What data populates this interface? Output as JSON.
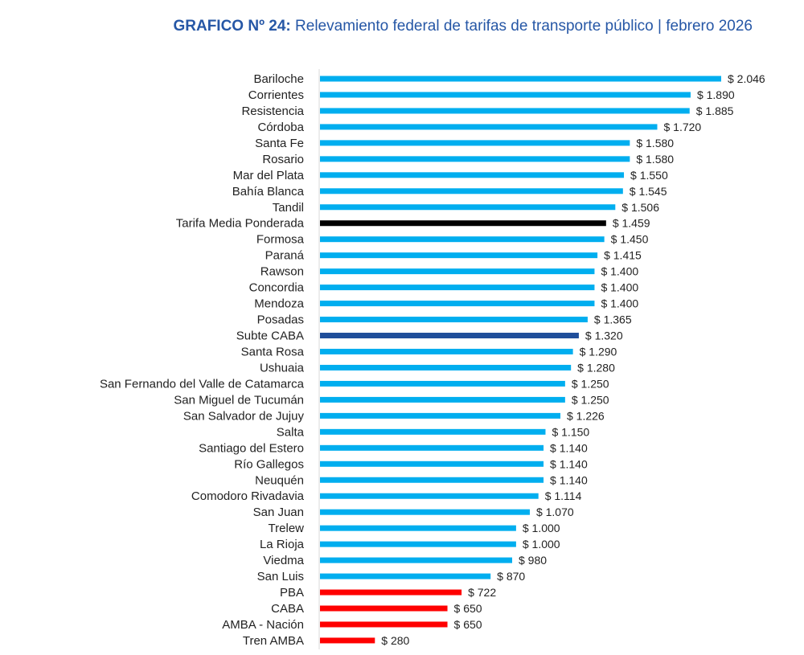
{
  "chart_data": {
    "type": "bar",
    "orientation": "horizontal",
    "title_prefix": "GRAFICO Nº 24:",
    "title": "Relevamiento federal de tarifas de transporte público | febrero 2026",
    "xlabel": "",
    "ylabel": "",
    "value_prefix": "$ ",
    "xlim": [
      0,
      2046
    ],
    "grid": false,
    "colors": {
      "default": "#00aeef",
      "average": "#000000",
      "subte": "#1f4e9a",
      "amba": "#ff0000"
    },
    "bars": [
      {
        "category": "Bariloche",
        "value": 2046,
        "label": "$ 2.046",
        "group": "default"
      },
      {
        "category": "Corrientes",
        "value": 1890,
        "label": "$ 1.890",
        "group": "default"
      },
      {
        "category": "Resistencia",
        "value": 1885,
        "label": "$ 1.885",
        "group": "default"
      },
      {
        "category": "Córdoba",
        "value": 1720,
        "label": "$ 1.720",
        "group": "default"
      },
      {
        "category": "Santa Fe",
        "value": 1580,
        "label": "$ 1.580",
        "group": "default"
      },
      {
        "category": "Rosario",
        "value": 1580,
        "label": "$ 1.580",
        "group": "default"
      },
      {
        "category": "Mar del Plata",
        "value": 1550,
        "label": "$ 1.550",
        "group": "default"
      },
      {
        "category": "Bahía Blanca",
        "value": 1545,
        "label": "$ 1.545",
        "group": "default"
      },
      {
        "category": "Tandil",
        "value": 1506,
        "label": "$ 1.506",
        "group": "default"
      },
      {
        "category": "Tarifa Media Ponderada",
        "value": 1459,
        "label": "$ 1.459",
        "group": "average"
      },
      {
        "category": "Formosa",
        "value": 1450,
        "label": "$ 1.450",
        "group": "default"
      },
      {
        "category": "Paraná",
        "value": 1415,
        "label": "$ 1.415",
        "group": "default"
      },
      {
        "category": "Rawson",
        "value": 1400,
        "label": "$ 1.400",
        "group": "default"
      },
      {
        "category": "Concordia",
        "value": 1400,
        "label": "$ 1.400",
        "group": "default"
      },
      {
        "category": "Mendoza",
        "value": 1400,
        "label": "$ 1.400",
        "group": "default"
      },
      {
        "category": "Posadas",
        "value": 1365,
        "label": "$ 1.365",
        "group": "default"
      },
      {
        "category": "Subte CABA",
        "value": 1320,
        "label": "$ 1.320",
        "group": "subte"
      },
      {
        "category": "Santa Rosa",
        "value": 1290,
        "label": "$ 1.290",
        "group": "default"
      },
      {
        "category": "Ushuaia",
        "value": 1280,
        "label": "$ 1.280",
        "group": "default"
      },
      {
        "category": "San Fernando del Valle de Catamarca",
        "value": 1250,
        "label": "$ 1.250",
        "group": "default"
      },
      {
        "category": "San Miguel de Tucumán",
        "value": 1250,
        "label": "$ 1.250",
        "group": "default"
      },
      {
        "category": "San Salvador de Jujuy",
        "value": 1226,
        "label": "$ 1.226",
        "group": "default"
      },
      {
        "category": "Salta",
        "value": 1150,
        "label": "$ 1.150",
        "group": "default"
      },
      {
        "category": "Santiago del Estero",
        "value": 1140,
        "label": "$ 1.140",
        "group": "default"
      },
      {
        "category": "Río Gallegos",
        "value": 1140,
        "label": "$ 1.140",
        "group": "default"
      },
      {
        "category": "Neuquén",
        "value": 1140,
        "label": "$ 1.140",
        "group": "default"
      },
      {
        "category": "Comodoro Rivadavia",
        "value": 1114,
        "label": "$ 1.114",
        "group": "default"
      },
      {
        "category": "San Juan",
        "value": 1070,
        "label": "$ 1.070",
        "group": "default"
      },
      {
        "category": "Trelew",
        "value": 1000,
        "label": "$ 1.000",
        "group": "default"
      },
      {
        "category": "La Rioja",
        "value": 1000,
        "label": "$ 1.000",
        "group": "default"
      },
      {
        "category": "Viedma",
        "value": 980,
        "label": "$ 980",
        "group": "default"
      },
      {
        "category": "San Luis",
        "value": 870,
        "label": "$ 870",
        "group": "default"
      },
      {
        "category": "PBA",
        "value": 722,
        "label": "$ 722",
        "group": "amba"
      },
      {
        "category": "CABA",
        "value": 650,
        "label": "$ 650",
        "group": "amba"
      },
      {
        "category": "AMBA - Nación",
        "value": 650,
        "label": "$ 650",
        "group": "amba"
      },
      {
        "category": "Tren AMBA",
        "value": 280,
        "label": "$ 280",
        "group": "amba"
      }
    ]
  }
}
